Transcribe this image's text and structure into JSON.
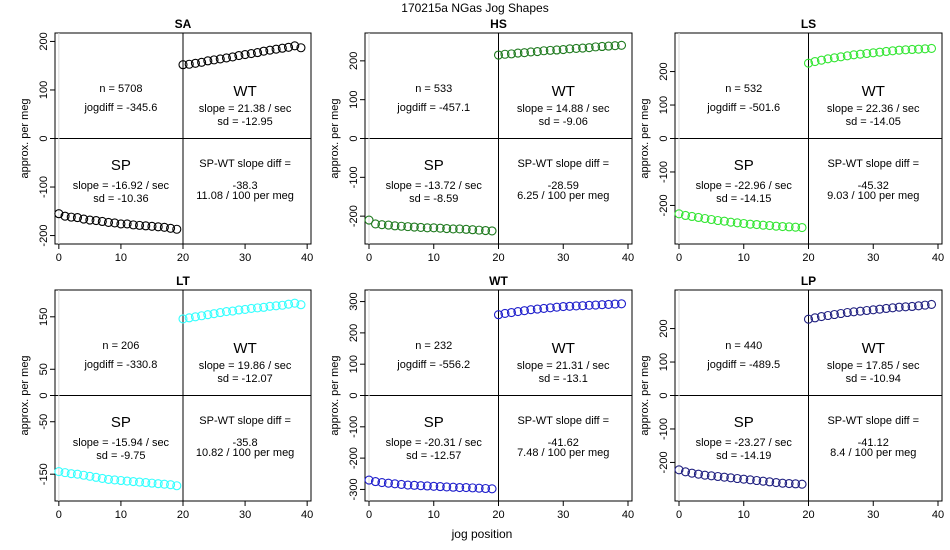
{
  "title": "170215a   NGas Jog Shapes",
  "xlabel": "jog position",
  "ylabel": "approx. per meg",
  "chart_data": [
    {
      "type": "scatter",
      "title": "SA",
      "color": "#000000",
      "xlim": [
        0,
        40
      ],
      "ylim": [
        -200,
        200
      ],
      "xticks": [
        0,
        10,
        20,
        30,
        40
      ],
      "yticks": [
        -200,
        -100,
        0,
        100,
        200
      ],
      "x": [
        0,
        1,
        2,
        3,
        4,
        5,
        6,
        7,
        8,
        9,
        10,
        11,
        12,
        13,
        14,
        15,
        16,
        17,
        18,
        19,
        20,
        21,
        22,
        23,
        24,
        25,
        26,
        27,
        28,
        29,
        30,
        31,
        32,
        33,
        34,
        35,
        36,
        37,
        38,
        39
      ],
      "y": [
        -155,
        -160,
        -162,
        -163,
        -166,
        -168,
        -169,
        -171,
        -173,
        -174,
        -176,
        -176,
        -178,
        -179,
        -180,
        -181,
        -182,
        -183,
        -185,
        -187,
        152,
        153,
        155,
        157,
        160,
        162,
        164,
        166,
        168,
        171,
        173,
        175,
        177,
        180,
        182,
        184,
        186,
        188,
        191,
        187
      ],
      "texts": {
        "n": "n = 5708",
        "jogdiff": "jogdiff = -345.6",
        "wt": "WT",
        "wt_slope": "slope = 21.38 / sec",
        "wt_sd": "sd = -12.95",
        "sp": "SP",
        "sp_slope": "slope = -16.92 / sec",
        "sp_sd": "sd = -10.36",
        "diff_label": "SP-WT slope diff =",
        "diff_value": "-38.3",
        "diff_meg": "11.08 / 100 per meg"
      }
    },
    {
      "type": "scatter",
      "title": "HS",
      "color": "#1f7a1f",
      "xlim": [
        0,
        40
      ],
      "ylim": [
        -250,
        250
      ],
      "xticks": [
        0,
        10,
        20,
        30,
        40
      ],
      "yticks": [
        -200,
        -100,
        0,
        100,
        200
      ],
      "x": [
        0,
        1,
        2,
        3,
        4,
        5,
        6,
        7,
        8,
        9,
        10,
        11,
        12,
        13,
        14,
        15,
        16,
        17,
        18,
        19,
        20,
        21,
        22,
        23,
        24,
        25,
        26,
        27,
        28,
        29,
        30,
        31,
        32,
        33,
        34,
        35,
        36,
        37,
        38,
        39
      ],
      "y": [
        -210,
        -220,
        -222,
        -223,
        -225,
        -226,
        -227,
        -228,
        -229,
        -230,
        -230,
        -231,
        -232,
        -233,
        -233,
        -234,
        -235,
        -236,
        -237,
        -238,
        215,
        217,
        218,
        220,
        221,
        223,
        224,
        226,
        227,
        228,
        229,
        231,
        232,
        233,
        234,
        236,
        237,
        238,
        239,
        240
      ],
      "texts": {
        "n": "n = 533",
        "jogdiff": "jogdiff = -457.1",
        "wt": "WT",
        "wt_slope": "slope = 14.88 / sec",
        "wt_sd": "sd = -9.06",
        "sp": "SP",
        "sp_slope": "slope = -13.72 / sec",
        "sp_sd": "sd = -8.59",
        "diff_label": "SP-WT slope diff =",
        "diff_value": "-28.59",
        "diff_meg": "6.25 / 100 per meg"
      }
    },
    {
      "type": "scatter",
      "title": "LS",
      "color": "#33e633",
      "xlim": [
        0,
        40
      ],
      "ylim": [
        -290,
        290
      ],
      "xticks": [
        0,
        10,
        20,
        30,
        40
      ],
      "yticks": [
        -200,
        -100,
        0,
        100,
        200
      ],
      "x": [
        0,
        1,
        2,
        3,
        4,
        5,
        6,
        7,
        8,
        9,
        10,
        11,
        12,
        13,
        14,
        15,
        16,
        17,
        18,
        19,
        20,
        21,
        22,
        23,
        24,
        25,
        26,
        27,
        28,
        29,
        30,
        31,
        32,
        33,
        34,
        35,
        36,
        37,
        38,
        39
      ],
      "y": [
        -225,
        -230,
        -233,
        -236,
        -239,
        -242,
        -245,
        -247,
        -250,
        -252,
        -254,
        -256,
        -257,
        -259,
        -260,
        -262,
        -263,
        -264,
        -265,
        -266,
        225,
        230,
        234,
        238,
        241,
        244,
        247,
        250,
        252,
        254,
        256,
        258,
        260,
        262,
        264,
        265,
        266,
        267,
        268,
        269
      ],
      "texts": {
        "n": "n = 532",
        "jogdiff": "jogdiff = -501.6",
        "wt": "WT",
        "wt_slope": "slope = 22.36 / sec",
        "wt_sd": "sd = -14.05",
        "sp": "SP",
        "sp_slope": "slope = -22.96 / sec",
        "sp_sd": "sd = -14.15",
        "diff_label": "SP-WT slope diff =",
        "diff_value": "-45.32",
        "diff_meg": "9.03 / 100 per meg"
      }
    },
    {
      "type": "scatter",
      "title": "LT",
      "color": "#33ffff",
      "xlim": [
        0,
        40
      ],
      "ylim": [
        -185,
        185
      ],
      "xticks": [
        0,
        10,
        20,
        30,
        40
      ],
      "yticks": [
        -150,
        -50,
        0,
        50,
        150
      ],
      "x": [
        0,
        1,
        2,
        3,
        4,
        5,
        6,
        7,
        8,
        9,
        10,
        11,
        12,
        13,
        14,
        15,
        16,
        17,
        18,
        19,
        20,
        21,
        22,
        23,
        24,
        25,
        26,
        27,
        28,
        29,
        30,
        31,
        32,
        33,
        34,
        35,
        36,
        37,
        38,
        39
      ],
      "y": [
        -145,
        -147,
        -149,
        -150,
        -152,
        -154,
        -156,
        -158,
        -160,
        -161,
        -162,
        -163,
        -164,
        -165,
        -166,
        -167,
        -168,
        -169,
        -170,
        -172,
        146,
        148,
        150,
        152,
        154,
        156,
        158,
        160,
        161,
        163,
        164,
        166,
        167,
        168,
        170,
        171,
        172,
        174,
        176,
        173
      ],
      "texts": {
        "n": "n = 206",
        "jogdiff": "jogdiff = -330.8",
        "wt": "WT",
        "wt_slope": "slope = 19.86 / sec",
        "wt_sd": "sd = -12.07",
        "sp": "SP",
        "sp_slope": "slope = -15.94 / sec",
        "sp_sd": "sd = -9.75",
        "diff_label": "SP-WT slope diff =",
        "diff_value": "-35.8",
        "diff_meg": "10.82 / 100 per meg"
      }
    },
    {
      "type": "scatter",
      "title": "WT",
      "color": "#1f1fcc",
      "xlim": [
        0,
        40
      ],
      "ylim": [
        -310,
        310
      ],
      "xticks": [
        0,
        10,
        20,
        30,
        40
      ],
      "yticks": [
        -300,
        -200,
        -100,
        0,
        100,
        200,
        300
      ],
      "x": [
        0,
        1,
        2,
        3,
        4,
        5,
        6,
        7,
        8,
        9,
        10,
        11,
        12,
        13,
        14,
        15,
        16,
        17,
        18,
        19,
        20,
        21,
        22,
        23,
        24,
        25,
        26,
        27,
        28,
        29,
        30,
        31,
        32,
        33,
        34,
        35,
        36,
        37,
        38,
        39
      ],
      "y": [
        -270,
        -275,
        -278,
        -280,
        -282,
        -284,
        -286,
        -287,
        -288,
        -289,
        -290,
        -291,
        -292,
        -293,
        -294,
        -294,
        -295,
        -296,
        -297,
        -298,
        258,
        262,
        265,
        268,
        271,
        274,
        276,
        278,
        280,
        282,
        284,
        285,
        286,
        287,
        288,
        289,
        290,
        291,
        292,
        293
      ],
      "texts": {
        "n": "n = 232",
        "jogdiff": "jogdiff = -556.2",
        "wt": "WT",
        "wt_slope": "slope = 21.31 / sec",
        "wt_sd": "sd = -13.1",
        "sp": "SP",
        "sp_slope": "slope = -20.31 / sec",
        "sp_sd": "sd = -12.57",
        "diff_label": "SP-WT slope diff =",
        "diff_value": "-41.62",
        "diff_meg": "7.48 / 100 per meg"
      }
    },
    {
      "type": "scatter",
      "title": "LP",
      "color": "#202080",
      "xlim": [
        0,
        40
      ],
      "ylim": [
        -290,
        290
      ],
      "xticks": [
        0,
        10,
        20,
        30,
        40
      ],
      "yticks": [
        -200,
        -100,
        0,
        100,
        200
      ],
      "x": [
        0,
        1,
        2,
        3,
        4,
        5,
        6,
        7,
        8,
        9,
        10,
        11,
        12,
        13,
        14,
        15,
        16,
        17,
        18,
        19,
        20,
        21,
        22,
        23,
        24,
        25,
        26,
        27,
        28,
        29,
        30,
        31,
        32,
        33,
        34,
        35,
        36,
        37,
        38,
        39
      ],
      "y": [
        -222,
        -228,
        -232,
        -235,
        -238,
        -240,
        -242,
        -244,
        -246,
        -248,
        -250,
        -252,
        -254,
        -256,
        -258,
        -260,
        -262,
        -263,
        -264,
        -265,
        228,
        232,
        236,
        239,
        242,
        245,
        248,
        250,
        252,
        254,
        256,
        258,
        260,
        262,
        264,
        265,
        266,
        268,
        270,
        272
      ],
      "texts": {
        "n": "n = 440",
        "jogdiff": "jogdiff = -489.5",
        "wt": "WT",
        "wt_slope": "slope = 17.85 / sec",
        "wt_sd": "sd = -10.94",
        "sp": "SP",
        "sp_slope": "slope = -23.27 / sec",
        "sp_sd": "sd = -14.19",
        "diff_label": "SP-WT slope diff =",
        "diff_value": "-41.12",
        "diff_meg": "8.4 / 100 per meg"
      }
    }
  ]
}
